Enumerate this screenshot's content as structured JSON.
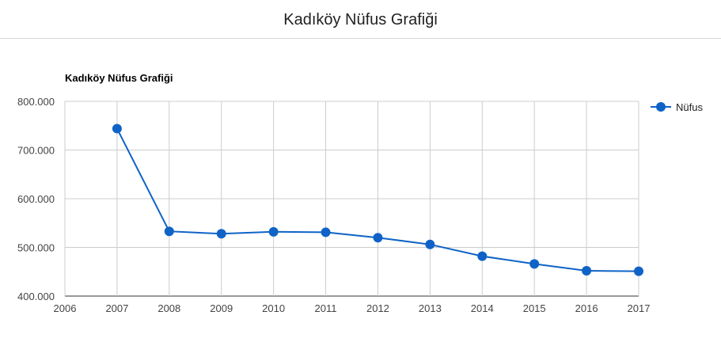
{
  "page": {
    "title": "Kadıköy Nüfus Grafiği"
  },
  "chart_data": {
    "type": "line",
    "title": "Kadıköy Nüfus Grafiği",
    "xlabel": "",
    "ylabel": "",
    "xlim": [
      2006,
      2017
    ],
    "ylim": [
      400000,
      800000
    ],
    "x_ticks": [
      "2006",
      "2007",
      "2008",
      "2009",
      "2010",
      "2011",
      "2012",
      "2013",
      "2014",
      "2015",
      "2016",
      "2017"
    ],
    "y_ticks": [
      "400.000",
      "500.000",
      "600.000",
      "700.000",
      "800.000"
    ],
    "grid": true,
    "legend": "right",
    "series": [
      {
        "name": "Nüfus",
        "color": "#0f63c7",
        "x": [
          2007,
          2008,
          2009,
          2010,
          2011,
          2012,
          2013,
          2014,
          2015,
          2016,
          2017
        ],
        "values": [
          744000,
          533000,
          528000,
          532000,
          531000,
          520000,
          506000,
          482000,
          466000,
          452000,
          451000
        ]
      }
    ]
  }
}
